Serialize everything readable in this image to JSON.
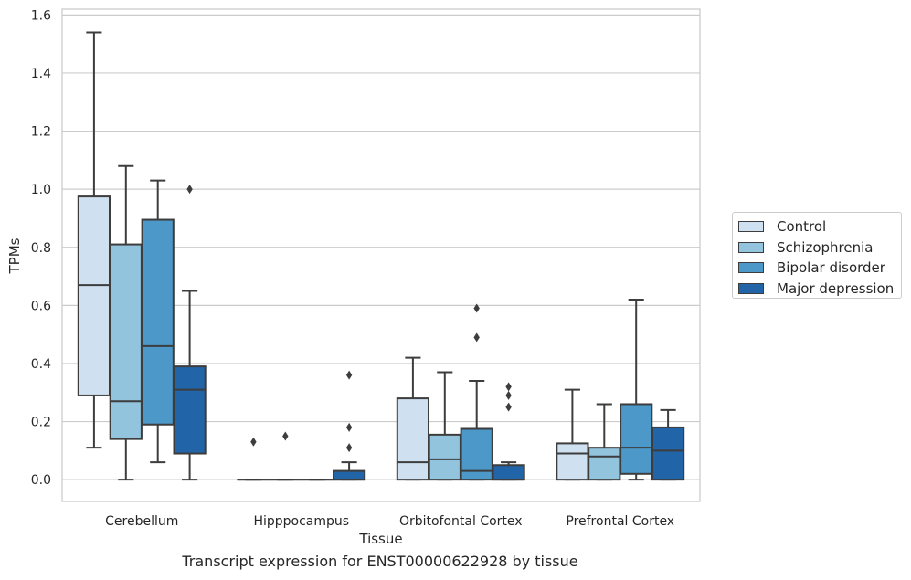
{
  "chart_data": {
    "type": "boxplot",
    "xlabel": "Tissue",
    "ylabel": "TPMs",
    "caption": "Transcript expression for ENST00000622928 by tissue",
    "ylim": [
      -0.075,
      1.62
    ],
    "yticks": [
      "0.0",
      "0.2",
      "0.4",
      "0.6",
      "0.8",
      "1.0",
      "1.2",
      "1.4",
      "1.6"
    ],
    "grid": "horizontal",
    "legend_position": "right",
    "categories": [
      "Cerebellum",
      "Hipppocampus",
      "Orbitofontal Cortex",
      "Prefrontal Cortex"
    ],
    "series": [
      {
        "name": "Control",
        "color": "#cfe0f1",
        "boxes": [
          {
            "whislo": 0.11,
            "q1": 0.29,
            "med": 0.67,
            "q3": 0.975,
            "whishi": 1.54,
            "fliers": []
          },
          {
            "whislo": 0.0,
            "q1": 0.0,
            "med": 0.0,
            "q3": 0.0,
            "whishi": 0.0,
            "fliers": [
              0.13
            ]
          },
          {
            "whislo": 0.0,
            "q1": 0.0,
            "med": 0.06,
            "q3": 0.28,
            "whishi": 0.42,
            "fliers": []
          },
          {
            "whislo": 0.0,
            "q1": 0.0,
            "med": 0.09,
            "q3": 0.125,
            "whishi": 0.31,
            "fliers": []
          }
        ]
      },
      {
        "name": "Schizophrenia",
        "color": "#93c4de",
        "boxes": [
          {
            "whislo": 0.0,
            "q1": 0.14,
            "med": 0.27,
            "q3": 0.81,
            "whishi": 1.08,
            "fliers": []
          },
          {
            "whislo": 0.0,
            "q1": 0.0,
            "med": 0.0,
            "q3": 0.0,
            "whishi": 0.0,
            "fliers": [
              0.15
            ]
          },
          {
            "whislo": 0.0,
            "q1": 0.0,
            "med": 0.07,
            "q3": 0.155,
            "whishi": 0.37,
            "fliers": []
          },
          {
            "whislo": 0.0,
            "q1": 0.0,
            "med": 0.08,
            "q3": 0.11,
            "whishi": 0.26,
            "fliers": []
          }
        ]
      },
      {
        "name": "Bipolar disorder",
        "color": "#4b98c9",
        "boxes": [
          {
            "whislo": 0.06,
            "q1": 0.19,
            "med": 0.46,
            "q3": 0.895,
            "whishi": 1.03,
            "fliers": []
          },
          {
            "whislo": 0.0,
            "q1": 0.0,
            "med": 0.0,
            "q3": 0.0,
            "whishi": 0.0,
            "fliers": []
          },
          {
            "whislo": 0.0,
            "q1": 0.0,
            "med": 0.03,
            "q3": 0.175,
            "whishi": 0.34,
            "fliers": [
              0.49,
              0.59
            ]
          },
          {
            "whislo": 0.0,
            "q1": 0.02,
            "med": 0.11,
            "q3": 0.26,
            "whishi": 0.62,
            "fliers": []
          }
        ]
      },
      {
        "name": "Major depression",
        "color": "#2264a8",
        "boxes": [
          {
            "whislo": 0.0,
            "q1": 0.09,
            "med": 0.31,
            "q3": 0.39,
            "whishi": 0.65,
            "fliers": [
              1.0
            ]
          },
          {
            "whislo": 0.0,
            "q1": 0.0,
            "med": 0.0,
            "q3": 0.03,
            "whishi": 0.06,
            "fliers": [
              0.11,
              0.18,
              0.36
            ]
          },
          {
            "whislo": 0.0,
            "q1": 0.0,
            "med": 0.0,
            "q3": 0.05,
            "whishi": 0.06,
            "fliers": [
              0.25,
              0.29,
              0.32
            ]
          },
          {
            "whislo": 0.0,
            "q1": 0.0,
            "med": 0.1,
            "q3": 0.18,
            "whishi": 0.24,
            "fliers": []
          }
        ]
      }
    ]
  }
}
